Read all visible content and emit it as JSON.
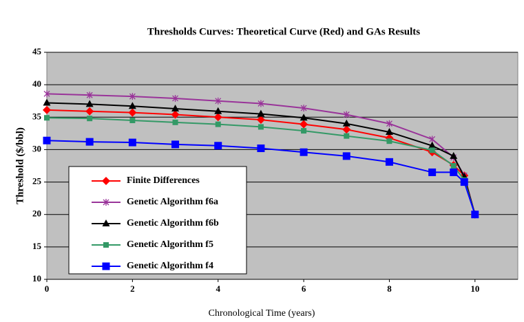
{
  "chart_data": {
    "type": "line",
    "title": "Thresholds Curves: Theoretical Curve (Red) and GAs Results",
    "x_label": "Chronological Time (years)",
    "y_label": "Threshold ($/bbl)",
    "x": [
      0,
      1,
      2,
      3,
      4,
      5,
      6,
      7,
      8,
      9,
      9.5,
      9.75,
      10
    ],
    "series": [
      {
        "name": "Finite Differences",
        "color": "#ff0000",
        "marker": "diamond",
        "values": [
          36.1,
          35.9,
          35.7,
          35.4,
          35.0,
          34.6,
          33.9,
          33.1,
          31.8,
          29.6,
          27.6,
          26.0,
          20
        ]
      },
      {
        "name": "Genetic Algorithm f6a",
        "color": "#993399",
        "marker": "star",
        "values": [
          38.6,
          38.4,
          38.2,
          37.9,
          37.5,
          37.1,
          36.4,
          35.4,
          34.0,
          31.6,
          28.8,
          26.0,
          20
        ]
      },
      {
        "name": "Genetic Algorithm f6b",
        "color": "#000000",
        "marker": "triangle",
        "values": [
          37.2,
          37.0,
          36.7,
          36.3,
          35.9,
          35.5,
          34.9,
          34.0,
          32.7,
          30.6,
          29.0,
          25.8,
          20
        ]
      },
      {
        "name": "Genetic Algorithm f5",
        "color": "#339966",
        "marker": "square",
        "values": [
          34.9,
          34.8,
          34.5,
          34.2,
          33.9,
          33.5,
          32.9,
          32.1,
          31.3,
          29.9,
          27.5,
          25.3,
          20
        ]
      },
      {
        "name": "Genetic Algorithm f4",
        "color": "#0000ff",
        "marker": "bigsquare",
        "values": [
          31.4,
          31.2,
          31.1,
          30.8,
          30.6,
          30.2,
          29.6,
          29.0,
          28.1,
          26.5,
          26.5,
          25.0,
          20
        ]
      }
    ],
    "xlim": [
      0,
      11
    ],
    "xticks": [
      0,
      2,
      4,
      6,
      8,
      10
    ],
    "ylim": [
      10,
      45
    ],
    "yticks": [
      10,
      15,
      20,
      25,
      30,
      35,
      40,
      45
    ],
    "grid": true,
    "legend": "lower-left",
    "background": "#c0c0c0"
  }
}
